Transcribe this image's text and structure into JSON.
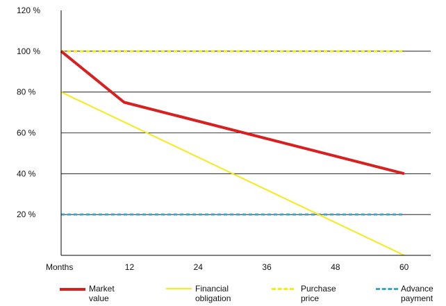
{
  "chart_data": {
    "type": "line",
    "x_axis_label": "Months",
    "x_ticks": [
      12,
      24,
      36,
      48,
      60
    ],
    "y_ticks": [
      "20 %",
      "40 %",
      "60 %",
      "80 %",
      "100 %",
      "120 %"
    ],
    "x_range": [
      0,
      60
    ],
    "y_range": [
      0,
      120
    ],
    "grid": "horizontal",
    "legend_position": "bottom",
    "series": [
      {
        "key": "market",
        "name": "Market value",
        "legend_lines": [
          "Market",
          "value"
        ],
        "style": "solid",
        "color": "#d7201f",
        "points": [
          [
            0,
            100
          ],
          [
            11,
            75
          ],
          [
            60,
            40
          ]
        ]
      },
      {
        "key": "financial",
        "name": "Financial obligation",
        "legend_lines": [
          "Financial",
          "obligation"
        ],
        "style": "solid",
        "color": "#f5ea1c",
        "points": [
          [
            0,
            80
          ],
          [
            60,
            0
          ]
        ]
      },
      {
        "key": "purchase",
        "name": "Purchase price",
        "legend_lines": [
          "Purchase",
          "price"
        ],
        "style": "dashed",
        "color": "#f5ea1c",
        "points": [
          [
            0,
            100
          ],
          [
            60,
            100
          ]
        ]
      },
      {
        "key": "advance",
        "name": "Advance payment",
        "legend_lines": [
          "Advance",
          "payment"
        ],
        "style": "dashed",
        "color": "#3ea6c9",
        "points": [
          [
            0,
            20
          ],
          [
            60,
            20
          ]
        ]
      }
    ]
  }
}
